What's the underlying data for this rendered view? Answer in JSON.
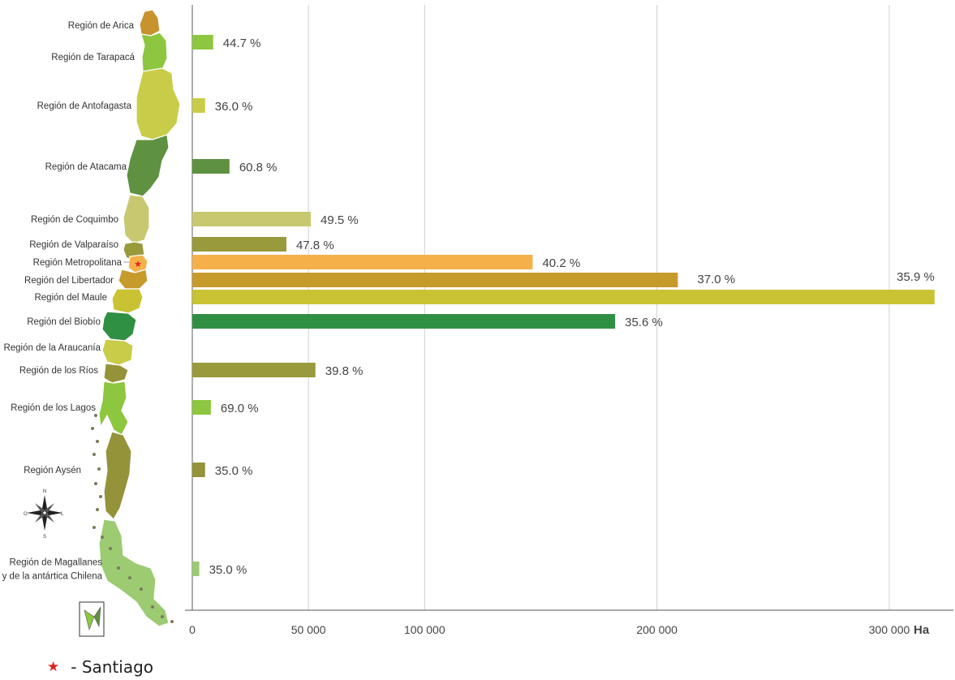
{
  "chart_data": {
    "type": "bar",
    "orientation": "horizontal",
    "unit": "Ha",
    "xlim": [
      0,
      320000
    ],
    "xticks": [
      0,
      50000,
      100000,
      200000,
      300000
    ],
    "xtick_labels": [
      "0",
      "50 000",
      "100 000",
      "200 000",
      "300 000"
    ],
    "grid": true,
    "categories": [
      "Región de Arica",
      "Región de Tarapacá",
      "Región de Antofagasta",
      "Región de Atacama",
      "Región de Coquimbo",
      "Región de Valparaíso",
      "Región Metropolitana",
      "Región del Libertador",
      "Región del Maule",
      "Región del Biobío",
      "Región de la Araucanía",
      "Región de los Ríos",
      "Región de los Lagos",
      "Región Aysén",
      "Región de Magallanes y de la antártica Chilena"
    ],
    "bars": [
      {
        "region": "Región de Tarapacá",
        "value": 9000,
        "label": "44.7 %",
        "color": "#8dc63f"
      },
      {
        "region": "Región de Antofagasta",
        "value": 5500,
        "label": "36.0 %",
        "color": "#c9cc48"
      },
      {
        "region": "Región de Atacama",
        "value": 16000,
        "label": "60.8 %",
        "color": "#5e9140"
      },
      {
        "region": "Región de Coquimbo",
        "value": 51000,
        "label": "49.5 %",
        "color": "#c8c870"
      },
      {
        "region": "Región de Valparaíso",
        "value": 40500,
        "label": "47.8 %",
        "color": "#999a3b"
      },
      {
        "region": "Región Metropolitana",
        "value": 146500,
        "label": "40.2 %",
        "color": "#f6b04a"
      },
      {
        "region": "Región del Libertador",
        "value": 209000,
        "label": "37.0 %",
        "color": "#c79a2c"
      },
      {
        "region": "Región del Maule",
        "value": 319500,
        "label": "35.9 %",
        "color": "#c9c232"
      },
      {
        "region": "Región del Biobío",
        "value": 182000,
        "label": "35.6 %",
        "color": "#2f8f43"
      },
      {
        "region": "Región de los Ríos",
        "value": 53000,
        "label": "39.8 %",
        "color": "#999a3b"
      },
      {
        "region": "Región de los Lagos",
        "value": 8000,
        "label": "69.0 %",
        "color": "#8dc63f"
      },
      {
        "region": "Región Aysén",
        "value": 5500,
        "label": "35.0 %",
        "color": "#94933a"
      },
      {
        "region": "Región de Magallanes y de la antártica Chilena",
        "value": 3000,
        "label": "35.0 %",
        "color": "#9ccb72"
      }
    ],
    "region_labels": [
      {
        "lines": [
          "Región de Arica"
        ]
      },
      {
        "lines": [
          "Región de Tarapacá"
        ]
      },
      {
        "lines": [
          "Región de Antofagasta"
        ]
      },
      {
        "lines": [
          "Región de Atacama"
        ]
      },
      {
        "lines": [
          "Región de Coquimbo"
        ]
      },
      {
        "lines": [
          "Región de Valparaíso"
        ]
      },
      {
        "lines": [
          "Región Metropolitana"
        ]
      },
      {
        "lines": [
          "Región del Libertador"
        ]
      },
      {
        "lines": [
          "Región del Maule"
        ]
      },
      {
        "lines": [
          "Región del Biobío"
        ]
      },
      {
        "lines": [
          "Región de la Araucanía"
        ]
      },
      {
        "lines": [
          "Región de los Ríos"
        ]
      },
      {
        "lines": [
          "Región de los Lagos"
        ]
      },
      {
        "lines": [
          "Región Aysén"
        ]
      },
      {
        "lines": [
          "Región de Magallanes",
          "y de la antártica Chilena"
        ]
      }
    ],
    "compass": {
      "n": "N",
      "s": "S",
      "e": "L",
      "w": "O"
    },
    "legend": {
      "symbol": "★",
      "text": "- Santiago",
      "color": "#e02020"
    }
  },
  "map_colors": {
    "arica": "#c8922e",
    "tarapaca": "#8dc63f",
    "antofagasta": "#c9cc48",
    "atacama": "#5e9140",
    "coquimbo": "#c8c870",
    "valparaiso": "#999a3b",
    "metropolitana": "#f6b04a",
    "libertador": "#c79a2c",
    "maule": "#c9c232",
    "biobio": "#2f8f43",
    "araucania": "#c9cc48",
    "losrios": "#94933a",
    "loslagos": "#8dc63f",
    "aysen": "#94933a",
    "magallanes": "#9ccb72"
  }
}
